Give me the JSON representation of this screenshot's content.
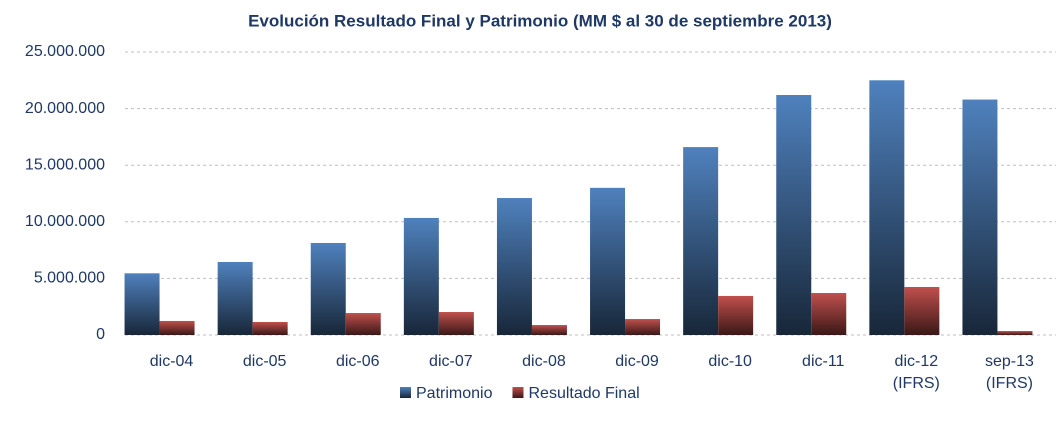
{
  "chart_data": {
    "type": "bar",
    "title": "Evolución Resultado Final y Patrimonio (MM $ al 30 de septiembre 2013)",
    "categories": [
      "dic-04",
      "dic-05",
      "dic-06",
      "dic-07",
      "dic-08",
      "dic-09",
      "dic-10",
      "dic-11",
      "dic-12 (IFRS)",
      "sep-13 (IFRS)"
    ],
    "series": [
      {
        "name": "Patrimonio",
        "color": "#4f81bd",
        "values": [
          5450000,
          6450000,
          8130000,
          10340000,
          12100000,
          13000000,
          16600000,
          21200000,
          22500000,
          20800000
        ]
      },
      {
        "name": "Resultado Final",
        "color": "#c0504d",
        "values": [
          1240000,
          1150000,
          1940000,
          2030000,
          880000,
          1410000,
          3450000,
          3710000,
          4240000,
          350000
        ]
      }
    ],
    "ylim": [
      0,
      25000000
    ],
    "yticks": [
      0,
      {
        "value": 5000000,
        "label": "5.000.000"
      },
      {
        "value": 10000000,
        "label": "10.000.000"
      },
      {
        "value": 15000000,
        "label": "15.000.000"
      },
      {
        "value": 20000000,
        "label": "20.000.000"
      },
      {
        "value": 25000000,
        "label": "25.000.000"
      }
    ],
    "grid": true,
    "legend": "bottom"
  }
}
